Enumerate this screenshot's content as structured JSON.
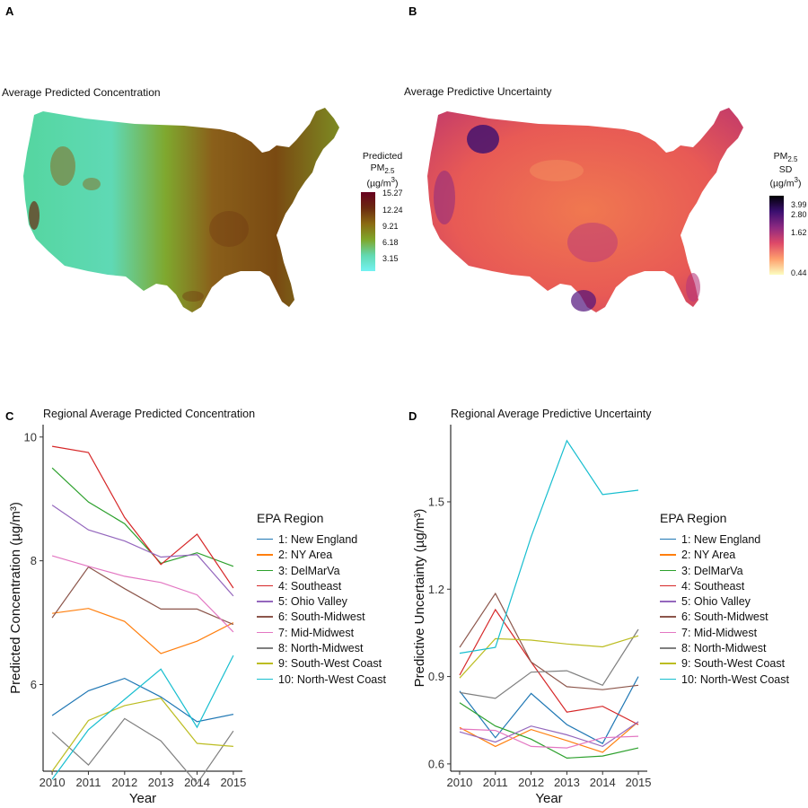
{
  "panels": {
    "a": {
      "letter": "A",
      "title": "Average Predicted Concentration",
      "colorbar": {
        "title_lines": [
          "Predicted",
          "PM",
          "2.5",
          "(µg/m",
          "3",
          ")"
        ],
        "ticks": [
          "15.27",
          "12.24",
          "9.21",
          "6.18",
          "3.15"
        ],
        "colors": [
          "#67001f",
          "#6b2a10",
          "#8a6a12",
          "#7fa62a",
          "#62d9b0",
          "#73f2f2"
        ]
      }
    },
    "b": {
      "letter": "B",
      "title": "Average Predictive Uncertainty",
      "colorbar": {
        "title_lines": [
          "PM",
          "2.5",
          "SD",
          "(µg/m",
          "3",
          ")"
        ],
        "ticks": [
          "3.99",
          "2.80",
          "1.62",
          "0.44"
        ],
        "colors": [
          "#000004",
          "#3b0f70",
          "#8c2981",
          "#de4968",
          "#fe9f6d",
          "#fcfdbf"
        ]
      }
    },
    "c": {
      "letter": "C",
      "title": "Regional Average Predicted Concentration"
    },
    "d": {
      "letter": "D",
      "title": "Regional Average Predictive Uncertainty"
    }
  },
  "legend": {
    "title": "EPA Region",
    "items": [
      {
        "label": "1: New England",
        "color": "#1f77b4"
      },
      {
        "label": "2: NY Area",
        "color": "#ff7f0e"
      },
      {
        "label": "3: DelMarVa",
        "color": "#2ca02c"
      },
      {
        "label": "4: Southeast",
        "color": "#d62728"
      },
      {
        "label": "5: Ohio Valley",
        "color": "#9467bd"
      },
      {
        "label": "6: South-Midwest",
        "color": "#8c564b"
      },
      {
        "label": "7: Mid-Midwest",
        "color": "#e377c2"
      },
      {
        "label": "8: North-Midwest",
        "color": "#7f7f7f"
      },
      {
        "label": "9: South-West Coast",
        "color": "#bcbd22"
      },
      {
        "label": "10: North-West Coast",
        "color": "#17becf"
      }
    ]
  },
  "chart_data": [
    {
      "type": "line",
      "title": "Regional Average Predicted Concentration",
      "xlabel": "Year",
      "ylabel": "Predicted Concentration (µg/m³)",
      "x": [
        2010,
        2011,
        2012,
        2013,
        2014,
        2015
      ],
      "xticks": [
        "2010",
        "2011",
        "2012",
        "2013",
        "2014",
        "2015"
      ],
      "yticks": [
        "6",
        "8",
        "10"
      ],
      "ylim": [
        4.6,
        10.2
      ],
      "grid": false,
      "legend_position": "right",
      "series": [
        {
          "name": "1: New England",
          "values": [
            5.5,
            5.9,
            6.1,
            5.8,
            5.4,
            5.52
          ]
        },
        {
          "name": "2: NY Area",
          "values": [
            7.15,
            7.23,
            7.02,
            6.5,
            6.7,
            7.0
          ]
        },
        {
          "name": "3: DelMarVa",
          "values": [
            9.5,
            8.95,
            8.6,
            7.96,
            8.13,
            7.91
          ]
        },
        {
          "name": "4: Southeast",
          "values": [
            9.85,
            9.75,
            8.7,
            7.94,
            8.43,
            7.56
          ]
        },
        {
          "name": "5: Ohio Valley",
          "values": [
            8.9,
            8.5,
            8.32,
            8.06,
            8.1,
            7.43
          ]
        },
        {
          "name": "6: South-Midwest",
          "values": [
            7.08,
            7.9,
            7.55,
            7.22,
            7.22,
            6.97
          ]
        },
        {
          "name": "7: Mid-Midwest",
          "values": [
            8.08,
            7.91,
            7.75,
            7.65,
            7.45,
            6.85
          ]
        },
        {
          "name": "8: North-Midwest",
          "values": [
            5.23,
            4.7,
            5.45,
            5.09,
            4.4,
            5.25
          ]
        },
        {
          "name": "9: South-West Coast",
          "values": [
            4.6,
            5.42,
            5.66,
            5.78,
            5.05,
            5.0
          ]
        },
        {
          "name": "10: North-West Coast",
          "values": [
            4.47,
            5.27,
            5.76,
            6.25,
            5.31,
            6.47
          ]
        }
      ]
    },
    {
      "type": "line",
      "title": "Regional Average Predictive Uncertainty",
      "xlabel": "Year",
      "ylabel": "Predictive Uncertainty (µg/m³)",
      "x": [
        2010,
        2011,
        2012,
        2013,
        2014,
        2015
      ],
      "xticks": [
        "2010",
        "2011",
        "2012",
        "2013",
        "2014",
        "2015"
      ],
      "yticks": [
        "0.6",
        "0.9",
        "1.2",
        "1.5"
      ],
      "ylim": [
        0.575,
        1.765
      ],
      "grid": false,
      "legend_position": "right",
      "series": [
        {
          "name": "1: New England",
          "values": [
            0.85,
            0.69,
            0.842,
            0.735,
            0.67,
            0.9
          ]
        },
        {
          "name": "2: NY Area",
          "values": [
            0.725,
            0.66,
            0.718,
            0.68,
            0.64,
            0.745
          ]
        },
        {
          "name": "3: DelMarVa",
          "values": [
            0.81,
            0.73,
            0.685,
            0.62,
            0.627,
            0.655
          ]
        },
        {
          "name": "4: Southeast",
          "values": [
            0.905,
            1.13,
            0.95,
            0.778,
            0.798,
            0.735
          ]
        },
        {
          "name": "5: Ohio Valley",
          "values": [
            0.71,
            0.675,
            0.73,
            0.7,
            0.66,
            0.745
          ]
        },
        {
          "name": "6: South-Midwest",
          "values": [
            1.0,
            1.185,
            0.95,
            0.865,
            0.855,
            0.87
          ]
        },
        {
          "name": "7: Mid-Midwest",
          "values": [
            0.72,
            0.715,
            0.66,
            0.655,
            0.69,
            0.695
          ]
        },
        {
          "name": "8: North-Midwest",
          "values": [
            0.845,
            0.825,
            0.915,
            0.92,
            0.87,
            1.062
          ]
        },
        {
          "name": "9: South-West Coast",
          "values": [
            0.895,
            1.03,
            1.025,
            1.012,
            1.002,
            1.04
          ]
        },
        {
          "name": "10: North-West Coast",
          "values": [
            0.98,
            1.0,
            1.38,
            1.71,
            1.525,
            1.54
          ]
        }
      ]
    }
  ]
}
